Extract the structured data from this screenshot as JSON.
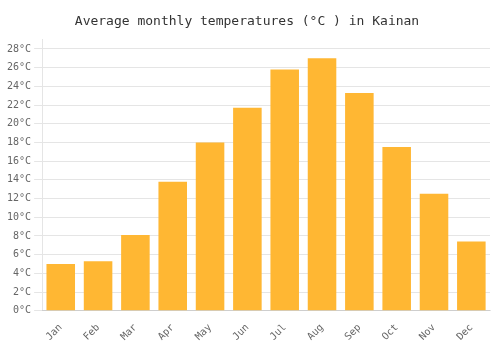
{
  "chart_data": {
    "type": "bar",
    "title": "Average monthly temperatures (°C ) in Kainan",
    "categories": [
      "Jan",
      "Feb",
      "Mar",
      "Apr",
      "May",
      "Jun",
      "Jul",
      "Aug",
      "Sep",
      "Oct",
      "Nov",
      "Dec"
    ],
    "values": [
      5.0,
      5.3,
      8.1,
      13.8,
      18.0,
      21.7,
      25.8,
      27.0,
      23.3,
      17.5,
      12.5,
      7.4
    ],
    "color": "#FFB733",
    "ylim": [
      0,
      29
    ],
    "yticks": [
      {
        "value": 0,
        "label": "0°C"
      },
      {
        "value": 2,
        "label": "2°C"
      },
      {
        "value": 4,
        "label": "4°C"
      },
      {
        "value": 6,
        "label": "6°C"
      },
      {
        "value": 8,
        "label": "8°C"
      },
      {
        "value": 10,
        "label": "10°C"
      },
      {
        "value": 12,
        "label": "12°C"
      },
      {
        "value": 14,
        "label": "14°C"
      },
      {
        "value": 16,
        "label": "16°C"
      },
      {
        "value": 18,
        "label": "18°C"
      },
      {
        "value": 20,
        "label": "20°C"
      },
      {
        "value": 22,
        "label": "22°C"
      },
      {
        "value": 24,
        "label": "24°C"
      },
      {
        "value": 26,
        "label": "26°C"
      },
      {
        "value": 28,
        "label": "28°C"
      }
    ],
    "grid": true
  }
}
